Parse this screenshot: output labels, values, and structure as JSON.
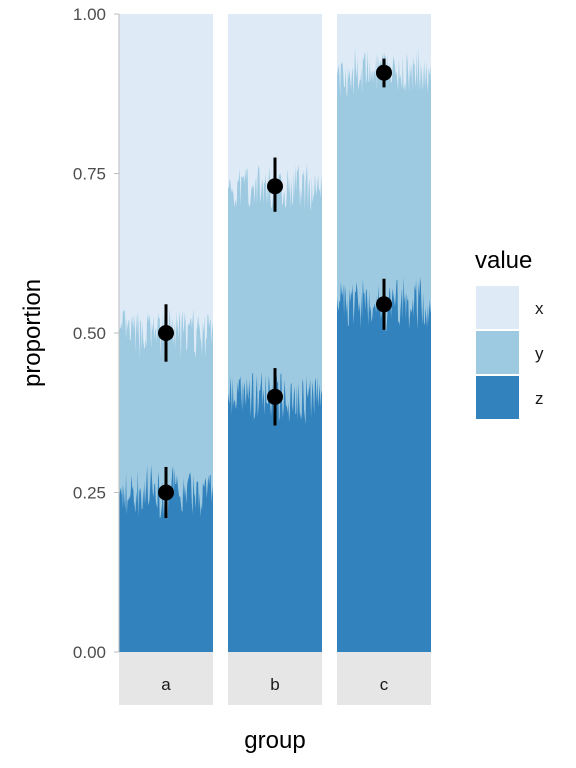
{
  "chart_data": {
    "type": "bar",
    "subtype": "stacked-proportion-facets",
    "ylabel": "proportion",
    "xlabel": "group",
    "ylim": [
      0,
      1
    ],
    "yticks": [
      "0.00",
      "0.25",
      "0.50",
      "0.75",
      "1.00"
    ],
    "grid": false,
    "facets": [
      "a",
      "b",
      "c"
    ],
    "legend": {
      "title": "value",
      "position": "right",
      "entries": [
        {
          "label": "x",
          "color": "#deebf7"
        },
        {
          "label": "y",
          "color": "#9ecae1"
        },
        {
          "label": "z",
          "color": "#3182bd"
        }
      ]
    },
    "boundaries": [
      {
        "facet": "a",
        "z_top": 0.25,
        "y_top": 0.5
      },
      {
        "facet": "b",
        "z_top": 0.4,
        "y_top": 0.73
      },
      {
        "facet": "c",
        "z_top": 0.545,
        "y_top": 0.908
      }
    ],
    "points": [
      {
        "facet": "a",
        "y": 0.5,
        "low": 0.455,
        "high": 0.545
      },
      {
        "facet": "a",
        "y": 0.25,
        "low": 0.21,
        "high": 0.29
      },
      {
        "facet": "b",
        "y": 0.73,
        "low": 0.69,
        "high": 0.775
      },
      {
        "facet": "b",
        "y": 0.4,
        "low": 0.355,
        "high": 0.445
      },
      {
        "facet": "c",
        "y": 0.908,
        "low": 0.885,
        "high": 0.93
      },
      {
        "facet": "c",
        "y": 0.545,
        "low": 0.505,
        "high": 0.585
      }
    ]
  }
}
